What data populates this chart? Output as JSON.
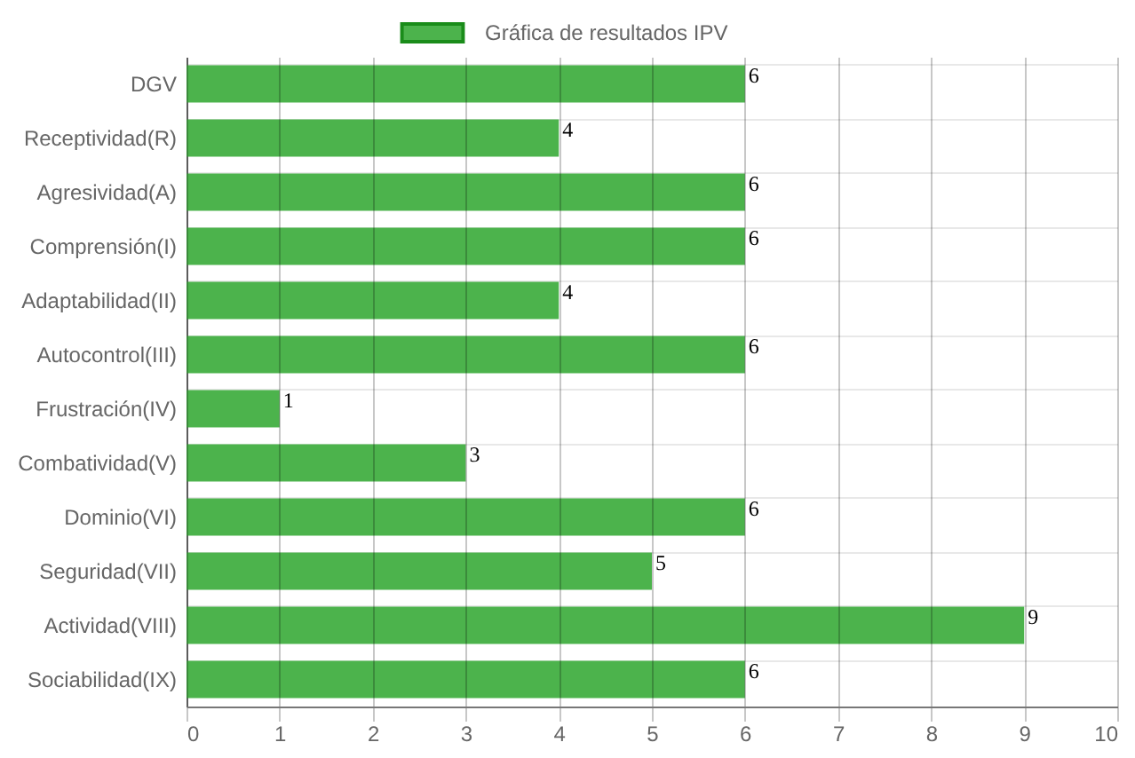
{
  "chart_data": {
    "type": "bar",
    "orientation": "horizontal",
    "categories": [
      "DGV",
      "Receptividad(R)",
      "Agresividad(A)",
      "Comprensión(I)",
      "Adaptabilidad(II)",
      "Autocontrol(III)",
      "Frustración(IV)",
      "Combatividad(V)",
      "Dominio(VI)",
      "Seguridad(VII)",
      "Actividad(VIII)",
      "Sociabilidad(IX)"
    ],
    "series": [
      {
        "name": "Gráfica de resultados IPV",
        "color": "#4cb34c",
        "values": [
          6,
          4,
          6,
          6,
          4,
          6,
          1,
          3,
          6,
          5,
          9,
          6
        ]
      }
    ],
    "xlim": [
      0,
      10
    ],
    "xticks": [
      0,
      1,
      2,
      3,
      4,
      5,
      6,
      7,
      8,
      9,
      10
    ],
    "grid": true,
    "legend": "top",
    "data_labels": true
  }
}
